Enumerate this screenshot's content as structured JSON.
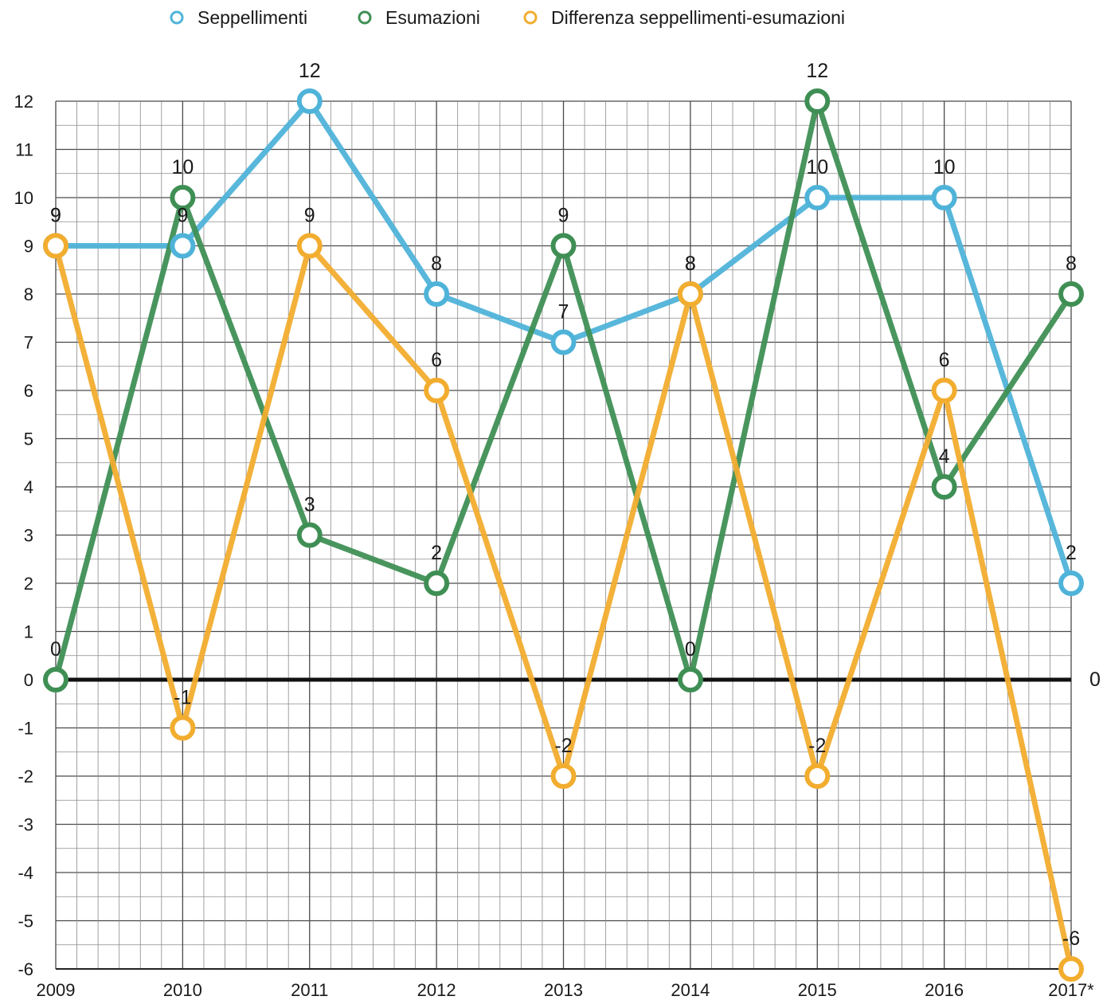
{
  "chart_data": {
    "type": "line",
    "categories": [
      "2009",
      "2010",
      "2011",
      "2012",
      "2013",
      "2014",
      "2015",
      "2016",
      "2017*"
    ],
    "ylim": [
      -6,
      12
    ],
    "y_ticks": [
      "-6",
      "-5",
      "-4",
      "-3",
      "-2",
      "-1",
      "0",
      "1",
      "2",
      "3",
      "4",
      "5",
      "6",
      "7",
      "8",
      "9",
      "10",
      "11",
      "12"
    ],
    "grid": true,
    "legend_position": "top",
    "zero_line_label": "0",
    "series": [
      {
        "name": "Seppellimenti",
        "color": "#4fb3d9",
        "values": [
          9,
          9,
          12,
          8,
          7,
          8,
          10,
          10,
          2
        ],
        "labels": [
          "9",
          "9",
          "12",
          "8",
          "7",
          "8",
          "10",
          "10",
          "2"
        ]
      },
      {
        "name": "Esumazioni",
        "color": "#3f8f55",
        "values": [
          0,
          10,
          3,
          2,
          9,
          0,
          12,
          4,
          8
        ],
        "labels": [
          "0",
          "10",
          "3",
          "2",
          "9",
          "0",
          "12",
          "4",
          "8"
        ]
      },
      {
        "name": "Differenza seppellimenti-esumazioni",
        "color": "#f2ad2f",
        "values": [
          9,
          -1,
          9,
          6,
          -2,
          8,
          -2,
          6,
          -6
        ],
        "labels": [
          "9",
          "-1",
          "9",
          "6",
          "-2",
          "8",
          "-2",
          "6",
          "-6"
        ]
      }
    ]
  }
}
